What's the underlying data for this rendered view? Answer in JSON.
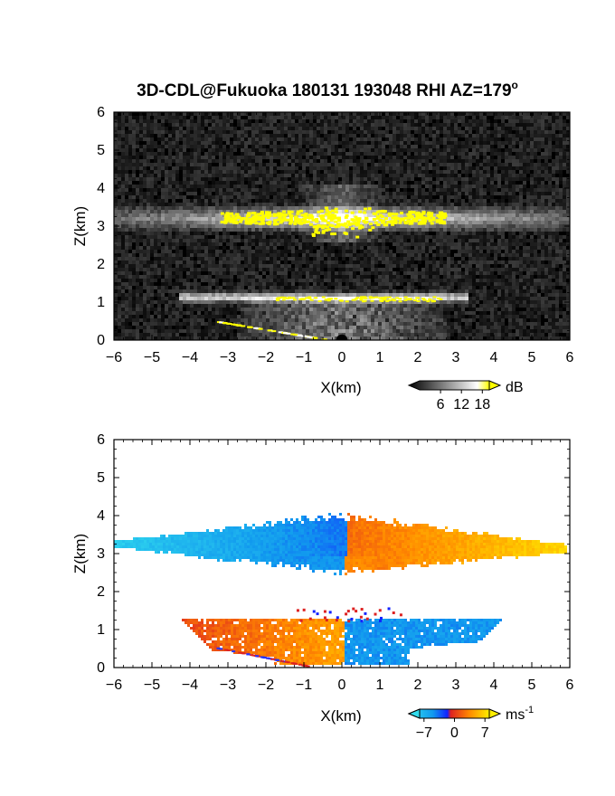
{
  "title": "3D-CDL@Fukuoka 180131 193048 RHI AZ=179",
  "title_superscript": "o",
  "chart_data": [
    {
      "type": "heatmap",
      "variable": "intensity",
      "xlabel": "X(km)",
      "ylabel": "Z(km)",
      "xlim": [
        -6,
        6
      ],
      "ylim": [
        0,
        6
      ],
      "xticks": [
        "-6",
        "-5",
        "-4",
        "-3",
        "-2",
        "-1",
        "0",
        "1",
        "2",
        "3",
        "4",
        "5",
        "6"
      ],
      "yticks": [
        "0",
        "1",
        "2",
        "3",
        "4",
        "5",
        "6"
      ],
      "background": "noise",
      "layers": [
        {
          "z_bottom": 2.9,
          "z_top": 3.5,
          "x_from": -6,
          "x_to": 6
        },
        {
          "z_bottom": 1.0,
          "z_top": 1.25,
          "x_from": -4.3,
          "x_to": 3.3
        }
      ],
      "colorbar": {
        "unit": "dB",
        "ticks": [
          "6",
          "12",
          "18"
        ],
        "range": [
          0,
          20
        ],
        "colors": [
          "#000000",
          "#ffffff",
          "#ffff00"
        ]
      }
    },
    {
      "type": "heatmap",
      "variable": "doppler velocity",
      "xlabel": "X(km)",
      "ylabel": "Z(km)",
      "xlim": [
        -6,
        6
      ],
      "ylim": [
        0,
        6
      ],
      "xticks": [
        "-6",
        "-5",
        "-4",
        "-3",
        "-2",
        "-1",
        "0",
        "1",
        "2",
        "3",
        "4",
        "5",
        "6"
      ],
      "yticks": [
        "0",
        "1",
        "2",
        "3",
        "4",
        "5",
        "6"
      ],
      "regions": [
        {
          "x_from": -6,
          "x_to": 0.1,
          "z_bottom": 2.5,
          "z_top": 4.0,
          "velocity_range": [
            -7,
            -3
          ]
        },
        {
          "x_from": 0.1,
          "x_to": 5.9,
          "z_bottom": 2.5,
          "z_top": 4.1,
          "velocity_range": [
            3,
            7
          ]
        },
        {
          "x_from": -4.2,
          "x_to": 0.1,
          "z_bottom": 0.1,
          "z_top": 1.3,
          "velocity_range": [
            2,
            5
          ]
        },
        {
          "x_from": 0.1,
          "x_to": 4.3,
          "z_bottom": 0.1,
          "z_top": 1.3,
          "velocity_range": [
            -6,
            -3
          ]
        }
      ],
      "colorbar": {
        "unit": "ms",
        "unit_superscript": "-1",
        "ticks": [
          "-7",
          "0",
          "7"
        ],
        "range": [
          -8,
          8
        ],
        "colors": [
          "#33ddee",
          "#1199ee",
          "#1122ff",
          "#dd2222",
          "#ff8800",
          "#ffee00"
        ]
      }
    }
  ]
}
